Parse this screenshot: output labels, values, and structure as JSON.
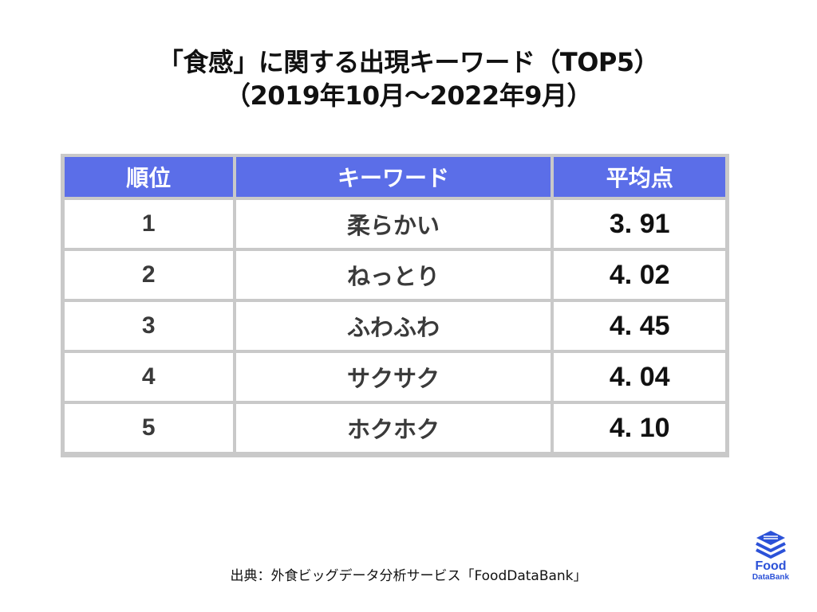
{
  "title": {
    "line1": "「食感」に関する出現キーワード（TOP5）",
    "line2": "（2019年10月〜2022年9月）"
  },
  "table": {
    "headers": [
      "順位",
      "キーワード",
      "平均点"
    ],
    "rows": [
      {
        "rank": "1",
        "keyword": "柔らかい",
        "score": "3. 91"
      },
      {
        "rank": "2",
        "keyword": "ねっとり",
        "score": "4. 02"
      },
      {
        "rank": "3",
        "keyword": "ふわふわ",
        "score": "4. 45"
      },
      {
        "rank": "4",
        "keyword": "サクサク",
        "score": "4. 04"
      },
      {
        "rank": "5",
        "keyword": "ホクホク",
        "score": "4. 10"
      }
    ]
  },
  "source": "出典：外食ビッグデータ分析サービス「FoodDataBank」",
  "logo": {
    "word": "Food",
    "sub": "DataBank",
    "icon": "stacked-layers-icon",
    "color": "#2c52d8"
  },
  "colors": {
    "header_bg": "#5b6ee8",
    "grid": "#c9c9c9"
  }
}
